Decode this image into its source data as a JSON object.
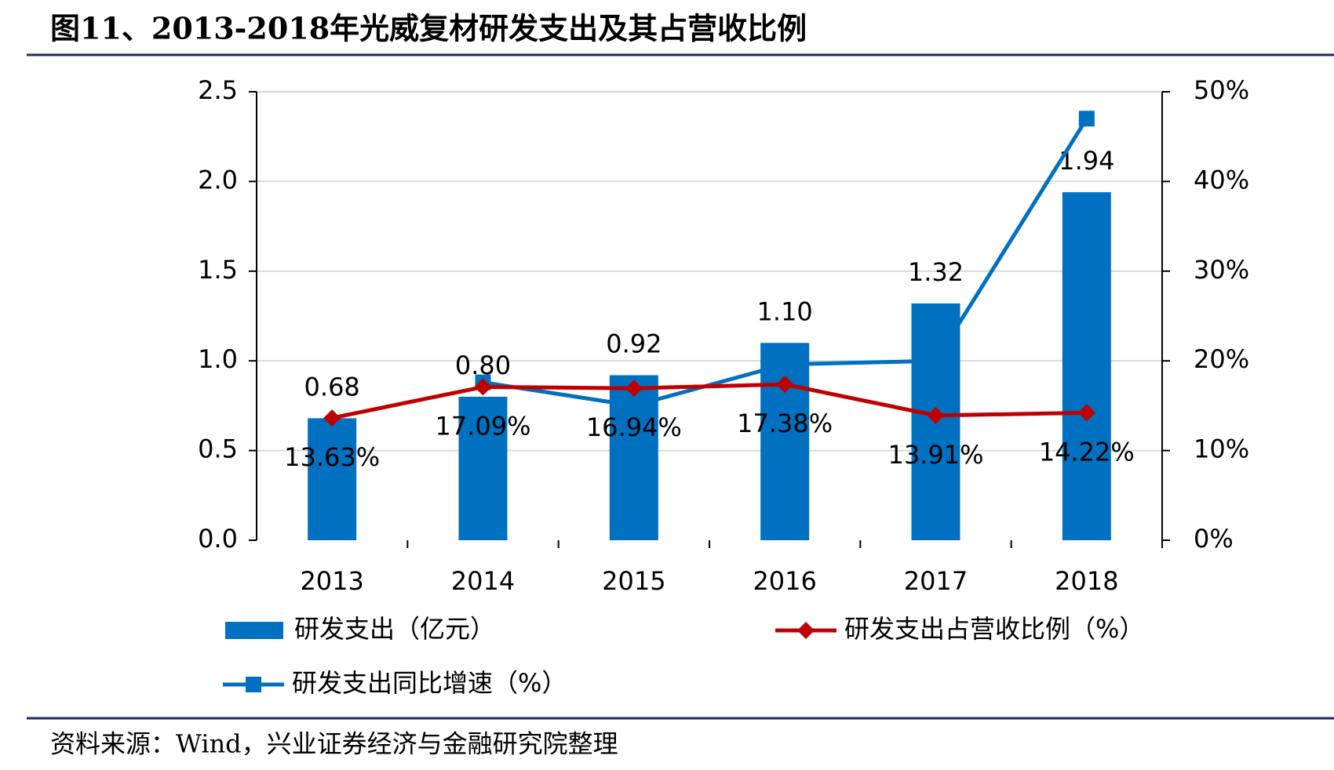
{
  "title": "图11、2013-2018年光威复材研发支出及其占营收比例",
  "source": "资料来源：Wind，兴业证券经济与金融研究院整理",
  "chart_data": {
    "type": "bar-line",
    "categories": [
      "2013",
      "2014",
      "2015",
      "2016",
      "2017",
      "2018"
    ],
    "series": [
      {
        "name": "研发支出（亿元）",
        "type": "bar",
        "color": "#0070c0",
        "values": [
          0.68,
          0.8,
          0.92,
          1.1,
          1.32,
          1.94
        ],
        "value_labels": [
          "0.68",
          "0.80",
          "0.92",
          "1.10",
          "1.32",
          "1.94"
        ]
      },
      {
        "name": "研发支出占营收比例（%）",
        "type": "line",
        "marker": "diamond",
        "axis": "y2",
        "color": "#c00000",
        "values": [
          13.63,
          17.09,
          16.94,
          17.38,
          13.91,
          14.22
        ],
        "value_labels": [
          "13.63%",
          "17.09%",
          "16.94%",
          "17.38%",
          "13.91%",
          "14.22%"
        ]
      },
      {
        "name": "研发支出同比增速（%）",
        "type": "line",
        "marker": "square",
        "axis": "y2",
        "color": "#0070c0",
        "values": [
          null,
          17.6,
          15,
          19.6,
          20,
          47
        ]
      }
    ],
    "ylim": [
      0,
      2.5
    ],
    "yticks": [
      {
        "value": 0,
        "label": "0.0"
      },
      0.5,
      {
        "value": 1,
        "label": "1.0"
      },
      1.5,
      {
        "value": 2,
        "label": "2.0"
      },
      2.5
    ],
    "y2lim": [
      0,
      50
    ],
    "y2ticks": [
      {
        "value": 0,
        "label": "0%"
      },
      {
        "value": 10,
        "label": "10%"
      },
      {
        "value": 20,
        "label": "20%"
      },
      {
        "value": 30,
        "label": "30%"
      },
      {
        "value": 40,
        "label": "40%"
      },
      {
        "value": 50,
        "label": "50%"
      }
    ],
    "grid": true
  }
}
